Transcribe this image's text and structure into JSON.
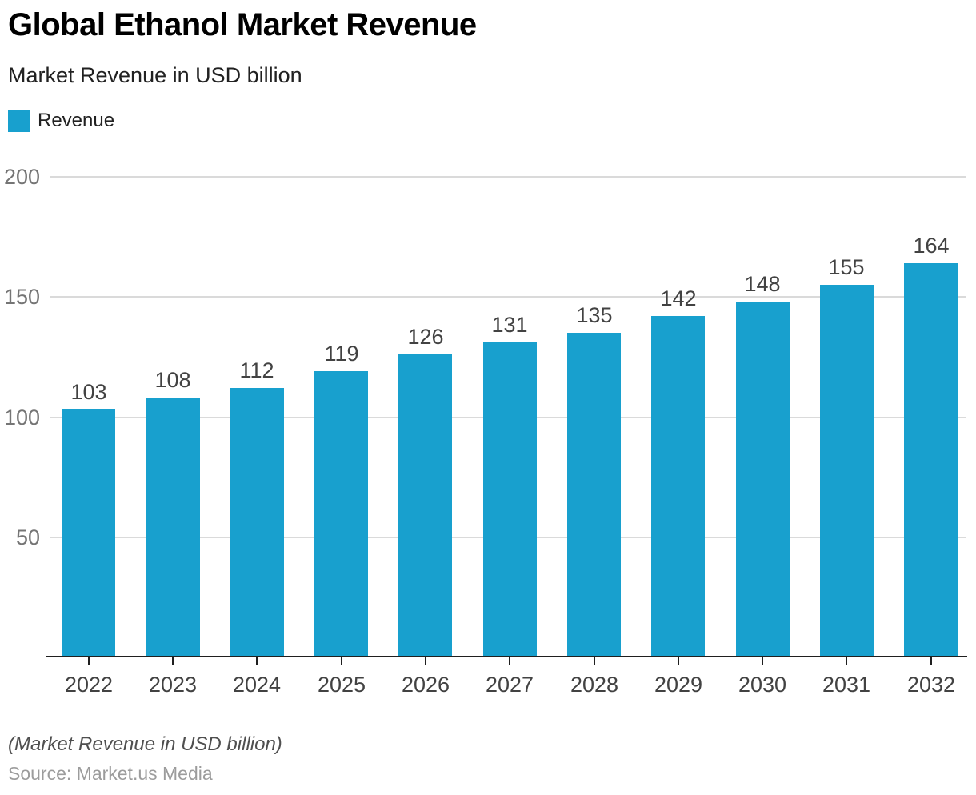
{
  "header": {
    "title": "Global Ethanol Market Revenue",
    "subtitle": "Market Revenue in USD billion"
  },
  "legend": {
    "label": "Revenue",
    "swatch_color": "#18a0ce"
  },
  "chart_data": {
    "type": "bar",
    "title": "Global Ethanol Market Revenue",
    "subtitle": "Market Revenue in USD billion",
    "categories": [
      "2022",
      "2023",
      "2024",
      "2025",
      "2026",
      "2027",
      "2028",
      "2029",
      "2030",
      "2031",
      "2032"
    ],
    "series": [
      {
        "name": "Revenue",
        "values": [
          103,
          108,
          112,
          119,
          126,
          131,
          135,
          142,
          148,
          155,
          164
        ]
      }
    ],
    "xlabel": "",
    "ylabel": "",
    "ylim": [
      0,
      200
    ],
    "yticks": [
      50,
      100,
      150,
      200
    ],
    "bar_color": "#18a0ce",
    "grid": true,
    "legend_position": "top-left",
    "data_labels": true
  },
  "footer": {
    "note": "(Market Revenue in USD billion)",
    "source": "Source: Market.us Media"
  }
}
